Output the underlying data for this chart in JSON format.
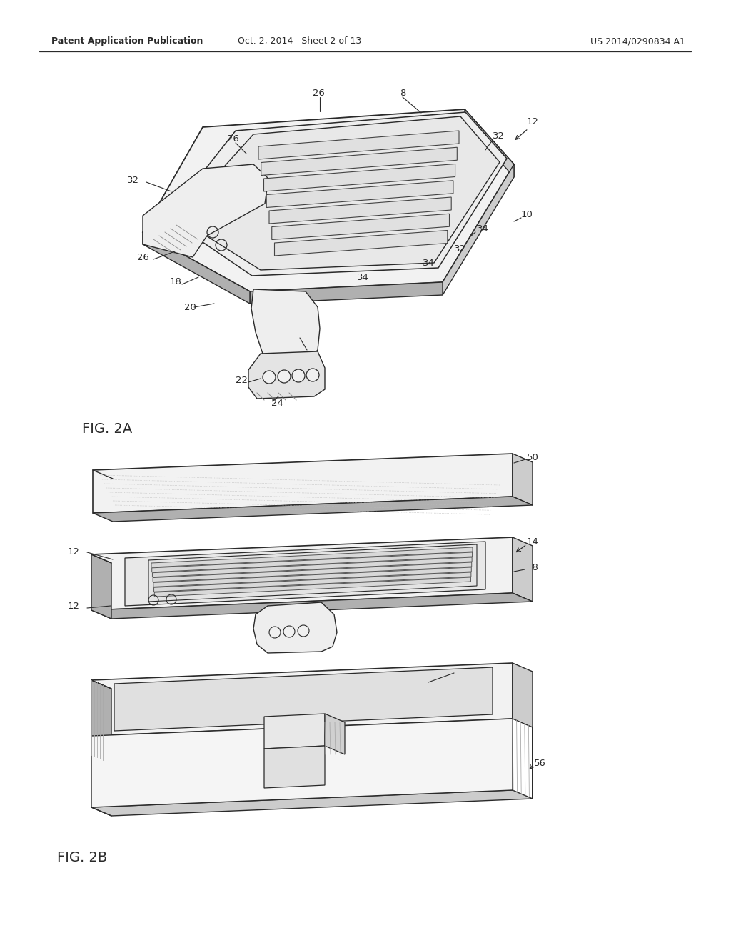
{
  "bg_color": "#ffffff",
  "line_color": "#2a2a2a",
  "gray1": "#f2f2f2",
  "gray2": "#e0e0e0",
  "gray3": "#cccccc",
  "gray4": "#b0b0b0",
  "gray5": "#aaaaaa",
  "header_left": "Patent Application Publication",
  "header_mid": "Oct. 2, 2014   Sheet 2 of 13",
  "header_right": "US 2014/0290834 A1",
  "fig_label_2a": "FIG. 2A",
  "fig_label_2b": "FIG. 2B"
}
